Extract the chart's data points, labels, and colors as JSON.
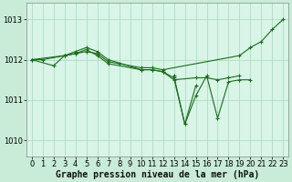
{
  "background_color": "#c8ecd8",
  "plot_bg_color": "#d8f5e8",
  "grid_color": "#b0dcc0",
  "line_color": "#1a6b1a",
  "xlabel": "Graphe pression niveau de la mer (hPa)",
  "xlabel_fontsize": 7,
  "tick_fontsize": 6,
  "yticks": [
    1010,
    1011,
    1012,
    1013
  ],
  "xlim": [
    -0.5,
    23.5
  ],
  "ylim": [
    1009.6,
    1013.4
  ],
  "series": [
    {
      "x": [
        0,
        1,
        3,
        4,
        5,
        6,
        7,
        8,
        10,
        11,
        12,
        19,
        20,
        21,
        22,
        23
      ],
      "y": [
        1012.0,
        1012.0,
        1012.1,
        1012.15,
        1012.2,
        1012.15,
        1011.95,
        1011.9,
        1011.8,
        1011.8,
        1011.75,
        1012.1,
        1012.3,
        1012.45,
        1012.75,
        1013.0
      ]
    },
    {
      "x": [
        0,
        2,
        3,
        4,
        5,
        6,
        7,
        10,
        11,
        12,
        13,
        15,
        16,
        17,
        18,
        19
      ],
      "y": [
        1012.0,
        1011.85,
        1012.1,
        1012.2,
        1012.3,
        1012.2,
        1012.0,
        1011.75,
        1011.75,
        1011.7,
        1011.5,
        1011.55,
        1011.55,
        1011.5,
        1011.55,
        1011.6
      ]
    },
    {
      "x": [
        0,
        3,
        4,
        5,
        6,
        7,
        10,
        11,
        12,
        13,
        14,
        15
      ],
      "y": [
        1012.0,
        1012.1,
        1012.15,
        1012.25,
        1012.1,
        1011.9,
        1011.75,
        1011.75,
        1011.7,
        1011.55,
        1010.4,
        1011.35
      ]
    },
    {
      "x": [
        13,
        14,
        15,
        16,
        17,
        18,
        19,
        20
      ],
      "y": [
        1011.6,
        1010.4,
        1011.1,
        1011.6,
        1010.55,
        1011.45,
        1011.5,
        1011.5
      ]
    }
  ]
}
